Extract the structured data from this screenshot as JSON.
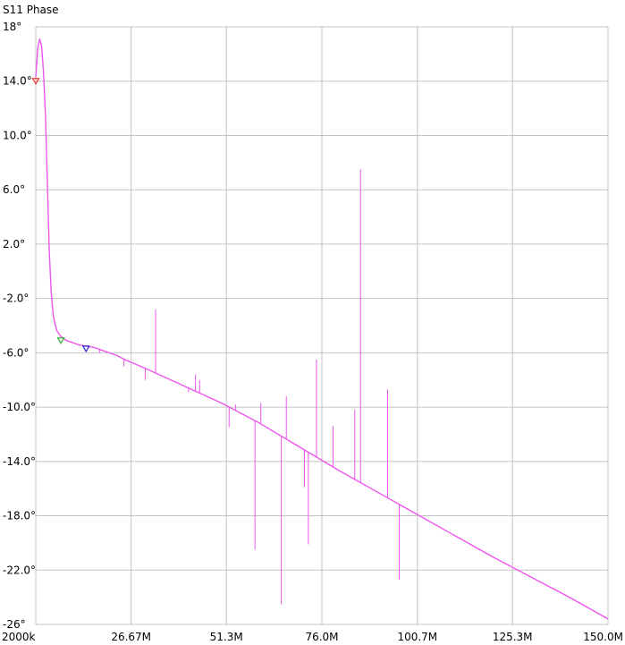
{
  "chart_data": {
    "type": "line",
    "title": "S11 Phase",
    "x_tick_labels": [
      "2000k",
      "26.67M",
      "51.3M",
      "76.0M",
      "100.7M",
      "125.3M",
      "150.0M"
    ],
    "x_ticks_mhz": [
      2.0,
      26.67,
      51.3,
      76.0,
      100.7,
      125.3,
      150.0
    ],
    "y_tick_labels": [
      "18°",
      "14.0°",
      "10.0°",
      "6.0°",
      "2.0°",
      "-2.0°",
      "-6.0°",
      "-10.0°",
      "-14.0°",
      "-18.0°",
      "-22.0°",
      "-26°"
    ],
    "y_ticks": [
      18,
      14,
      10,
      6,
      2,
      -2,
      -6,
      -10,
      -14,
      -18,
      -22,
      -26
    ],
    "xlim_mhz": [
      2.0,
      150.0
    ],
    "ylim": [
      -26,
      18
    ],
    "grid": true,
    "series_color": "#ee55ee",
    "series": [
      {
        "x_mhz": [
          2.0,
          2.5,
          3.0,
          3.5,
          4.0,
          4.5,
          5.0,
          5.5,
          6.0,
          6.5,
          7.0,
          7.5,
          8.0,
          8.5,
          9.0,
          10.0,
          11.0,
          12.0,
          13.0,
          15.0,
          17.0,
          19.0,
          21.0,
          23.0,
          25.0,
          30.0,
          40.0,
          50.0,
          60.0,
          70.0,
          80.0,
          90.0,
          100.0,
          110.0,
          120.0,
          130.0,
          140.0,
          150.0
        ],
        "y_deg": [
          14.3,
          16.4,
          17.1,
          16.6,
          14.7,
          11.6,
          6.5,
          1.5,
          -1.6,
          -3.2,
          -3.9,
          -4.4,
          -4.6,
          -4.8,
          -4.9,
          -5.1,
          -5.2,
          -5.3,
          -5.4,
          -5.5,
          -5.6,
          -5.8,
          -6.0,
          -6.2,
          -6.5,
          -7.1,
          -8.4,
          -9.7,
          -11.2,
          -12.9,
          -14.6,
          -16.2,
          -17.8,
          -19.4,
          -21.0,
          -22.5,
          -24.0,
          -25.6
        ]
      }
    ],
    "spikes": [
      {
        "x_mhz": 18.5,
        "y_deg": -6.0
      },
      {
        "x_mhz": 24.8,
        "y_deg": -7.0
      },
      {
        "x_mhz": 30.3,
        "y_deg": -8.0
      },
      {
        "x_mhz": 33.0,
        "y_deg": -2.8
      },
      {
        "x_mhz": 41.5,
        "y_deg": -8.9
      },
      {
        "x_mhz": 43.3,
        "y_deg": -7.6
      },
      {
        "x_mhz": 44.4,
        "y_deg": -8.0
      },
      {
        "x_mhz": 52.0,
        "y_deg": -11.5
      },
      {
        "x_mhz": 53.7,
        "y_deg": -9.8
      },
      {
        "x_mhz": 58.7,
        "y_deg": -20.5
      },
      {
        "x_mhz": 60.2,
        "y_deg": -9.7
      },
      {
        "x_mhz": 65.5,
        "y_deg": -24.5
      },
      {
        "x_mhz": 66.8,
        "y_deg": -9.2
      },
      {
        "x_mhz": 71.5,
        "y_deg": -15.9
      },
      {
        "x_mhz": 72.5,
        "y_deg": -20.1
      },
      {
        "x_mhz": 74.6,
        "y_deg": -6.5
      },
      {
        "x_mhz": 78.9,
        "y_deg": -11.4
      },
      {
        "x_mhz": 84.5,
        "y_deg": -10.2
      },
      {
        "x_mhz": 86.0,
        "y_deg": 7.5
      },
      {
        "x_mhz": 93.0,
        "y_deg": -8.7
      },
      {
        "x_mhz": 96.0,
        "y_deg": -22.7
      }
    ],
    "markers": [
      {
        "x_mhz": 2.0,
        "y_deg": 14.0,
        "color": "#ee3333"
      },
      {
        "x_mhz": 8.5,
        "y_deg": -5.1,
        "color": "#33aa33"
      },
      {
        "x_mhz": 15.0,
        "y_deg": -5.7,
        "color": "#2222cc"
      }
    ]
  }
}
